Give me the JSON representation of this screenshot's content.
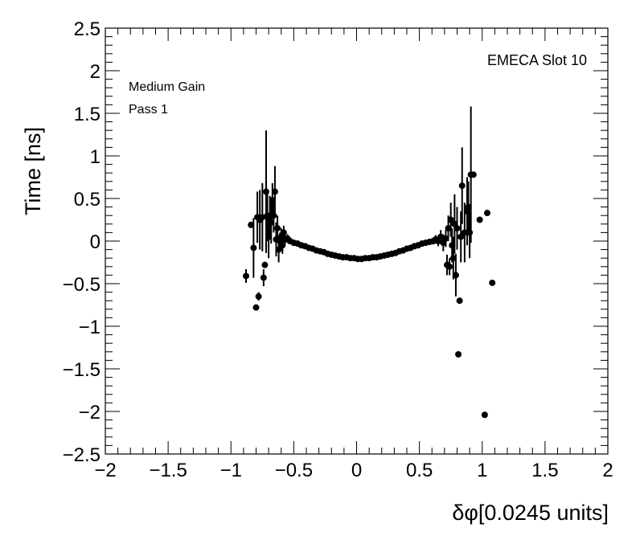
{
  "chart_data": {
    "type": "scatter",
    "title": "",
    "xlabel": "δφ[0.0245 units]",
    "ylabel": "Time [ns]",
    "xlim": [
      -2,
      2
    ],
    "ylim": [
      -2.5,
      2.5
    ],
    "x_ticks": [
      "−2",
      "−1.5",
      "−1",
      "−0.5",
      "0",
      "0.5",
      "1",
      "1.5",
      "2"
    ],
    "y_ticks": [
      "2.5",
      "2",
      "1.5",
      "1",
      "0.5",
      "0",
      "−0.5",
      "−1",
      "−1.5",
      "−2",
      "−2.5"
    ],
    "grid": false,
    "annotations": {
      "slot": "EMECA Slot 10",
      "gain": "Medium Gain",
      "pass": "Pass 1"
    },
    "marker_color": "#000000",
    "points": [
      {
        "x": -0.88,
        "y": -0.41,
        "err": 0.08
      },
      {
        "x": -0.84,
        "y": 0.19,
        "err": 0.0
      },
      {
        "x": -0.82,
        "y": -0.08,
        "err": 0.35
      },
      {
        "x": -0.8,
        "y": -0.78,
        "err": 0.0
      },
      {
        "x": -0.79,
        "y": 0.28,
        "err": 0.3
      },
      {
        "x": -0.78,
        "y": -0.65,
        "err": 0.05
      },
      {
        "x": -0.77,
        "y": 0.25,
        "err": 0.35
      },
      {
        "x": -0.75,
        "y": 0.28,
        "err": 0.4
      },
      {
        "x": -0.74,
        "y": -0.43,
        "err": 0.1
      },
      {
        "x": -0.73,
        "y": -0.28,
        "err": 0.0
      },
      {
        "x": -0.72,
        "y": 0.58,
        "err": 0.72
      },
      {
        "x": -0.71,
        "y": 0.3,
        "err": 0.3
      },
      {
        "x": -0.7,
        "y": 0.05,
        "err": 0.25
      },
      {
        "x": -0.69,
        "y": 0.28,
        "err": 0.25
      },
      {
        "x": -0.68,
        "y": 0.22,
        "err": 0.25
      },
      {
        "x": -0.67,
        "y": 0.48,
        "err": 0.2
      },
      {
        "x": -0.66,
        "y": 0.3,
        "err": 0.2
      },
      {
        "x": -0.65,
        "y": 0.58,
        "err": 0.3
      },
      {
        "x": -0.64,
        "y": 0.02,
        "err": 0.2
      },
      {
        "x": -0.63,
        "y": 0.15,
        "err": 0.15
      },
      {
        "x": -0.62,
        "y": -0.1,
        "err": 0.15
      },
      {
        "x": -0.61,
        "y": 0.0,
        "err": 0.1
      },
      {
        "x": -0.6,
        "y": 0.05,
        "err": 0.1
      },
      {
        "x": -0.59,
        "y": -0.05,
        "err": 0.1
      },
      {
        "x": -0.58,
        "y": 0.1,
        "err": 0.08
      },
      {
        "x": -0.57,
        "y": 0.02,
        "err": 0.06
      },
      {
        "x": -0.55,
        "y": 0.03,
        "err": 0.05
      },
      {
        "x": -0.53,
        "y": 0.0,
        "err": 0.03
      },
      {
        "x": -0.5,
        "y": -0.02,
        "err": 0.02
      },
      {
        "x": -0.47,
        "y": -0.03,
        "err": 0.02
      },
      {
        "x": -0.44,
        "y": -0.05,
        "err": 0.02
      },
      {
        "x": -0.41,
        "y": -0.06,
        "err": 0.01
      },
      {
        "x": -0.38,
        "y": -0.08,
        "err": 0.01
      },
      {
        "x": -0.35,
        "y": -0.09,
        "err": 0.01
      },
      {
        "x": -0.32,
        "y": -0.11,
        "err": 0.01
      },
      {
        "x": -0.29,
        "y": -0.12,
        "err": 0.01
      },
      {
        "x": -0.26,
        "y": -0.13,
        "err": 0.01
      },
      {
        "x": -0.23,
        "y": -0.15,
        "err": 0.01
      },
      {
        "x": -0.2,
        "y": -0.16,
        "err": 0.01
      },
      {
        "x": -0.17,
        "y": -0.17,
        "err": 0.01
      },
      {
        "x": -0.14,
        "y": -0.18,
        "err": 0.01
      },
      {
        "x": -0.11,
        "y": -0.19,
        "err": 0.01
      },
      {
        "x": -0.08,
        "y": -0.19,
        "err": 0.01
      },
      {
        "x": -0.05,
        "y": -0.2,
        "err": 0.01
      },
      {
        "x": -0.02,
        "y": -0.2,
        "err": 0.01
      },
      {
        "x": 0.01,
        "y": -0.21,
        "err": 0.01
      },
      {
        "x": 0.04,
        "y": -0.21,
        "err": 0.01
      },
      {
        "x": 0.07,
        "y": -0.2,
        "err": 0.01
      },
      {
        "x": 0.1,
        "y": -0.2,
        "err": 0.01
      },
      {
        "x": 0.13,
        "y": -0.19,
        "err": 0.01
      },
      {
        "x": 0.16,
        "y": -0.19,
        "err": 0.01
      },
      {
        "x": 0.19,
        "y": -0.18,
        "err": 0.01
      },
      {
        "x": 0.22,
        "y": -0.17,
        "err": 0.01
      },
      {
        "x": 0.25,
        "y": -0.16,
        "err": 0.01
      },
      {
        "x": 0.28,
        "y": -0.15,
        "err": 0.01
      },
      {
        "x": 0.31,
        "y": -0.14,
        "err": 0.01
      },
      {
        "x": 0.34,
        "y": -0.12,
        "err": 0.01
      },
      {
        "x": 0.37,
        "y": -0.11,
        "err": 0.01
      },
      {
        "x": 0.4,
        "y": -0.09,
        "err": 0.01
      },
      {
        "x": 0.43,
        "y": -0.08,
        "err": 0.01
      },
      {
        "x": 0.46,
        "y": -0.06,
        "err": 0.01
      },
      {
        "x": 0.49,
        "y": -0.05,
        "err": 0.01
      },
      {
        "x": 0.52,
        "y": -0.03,
        "err": 0.02
      },
      {
        "x": 0.55,
        "y": -0.02,
        "err": 0.02
      },
      {
        "x": 0.58,
        "y": -0.01,
        "err": 0.03
      },
      {
        "x": 0.61,
        "y": 0.0,
        "err": 0.04
      },
      {
        "x": 0.63,
        "y": 0.02,
        "err": 0.05
      },
      {
        "x": 0.65,
        "y": 0.0,
        "err": 0.06
      },
      {
        "x": 0.67,
        "y": 0.05,
        "err": 0.08
      },
      {
        "x": 0.69,
        "y": -0.02,
        "err": 0.1
      },
      {
        "x": 0.71,
        "y": 0.03,
        "err": 0.1
      },
      {
        "x": 0.72,
        "y": -0.28,
        "err": 0.12
      },
      {
        "x": 0.73,
        "y": 0.15,
        "err": 0.15
      },
      {
        "x": 0.74,
        "y": -0.3,
        "err": 0.1
      },
      {
        "x": 0.75,
        "y": 0.25,
        "err": 0.2
      },
      {
        "x": 0.76,
        "y": -0.05,
        "err": 0.2
      },
      {
        "x": 0.77,
        "y": -0.2,
        "err": 0.25
      },
      {
        "x": 0.78,
        "y": 0.2,
        "err": 0.35
      },
      {
        "x": 0.79,
        "y": -0.4,
        "err": 0.25
      },
      {
        "x": 0.8,
        "y": 0.15,
        "err": 0.25
      },
      {
        "x": 0.81,
        "y": -1.33,
        "err": 0.0
      },
      {
        "x": 0.82,
        "y": -0.7,
        "err": 0.0
      },
      {
        "x": 0.83,
        "y": 0.05,
        "err": 0.3
      },
      {
        "x": 0.84,
        "y": 0.65,
        "err": 0.45
      },
      {
        "x": 0.86,
        "y": 0.1,
        "err": 0.35
      },
      {
        "x": 0.88,
        "y": 0.35,
        "err": 0.4
      },
      {
        "x": 0.89,
        "y": 0.4,
        "err": 0.3
      },
      {
        "x": 0.9,
        "y": 0.1,
        "err": 0.3
      },
      {
        "x": 0.91,
        "y": 0.78,
        "err": 0.8
      },
      {
        "x": 0.93,
        "y": 0.78,
        "err": 0.0
      },
      {
        "x": 0.98,
        "y": 0.25,
        "err": 0.0
      },
      {
        "x": 1.02,
        "y": -2.04,
        "err": 0.0
      },
      {
        "x": 1.04,
        "y": 0.33,
        "err": 0.0
      },
      {
        "x": 1.08,
        "y": -0.49,
        "err": 0.0
      }
    ]
  }
}
